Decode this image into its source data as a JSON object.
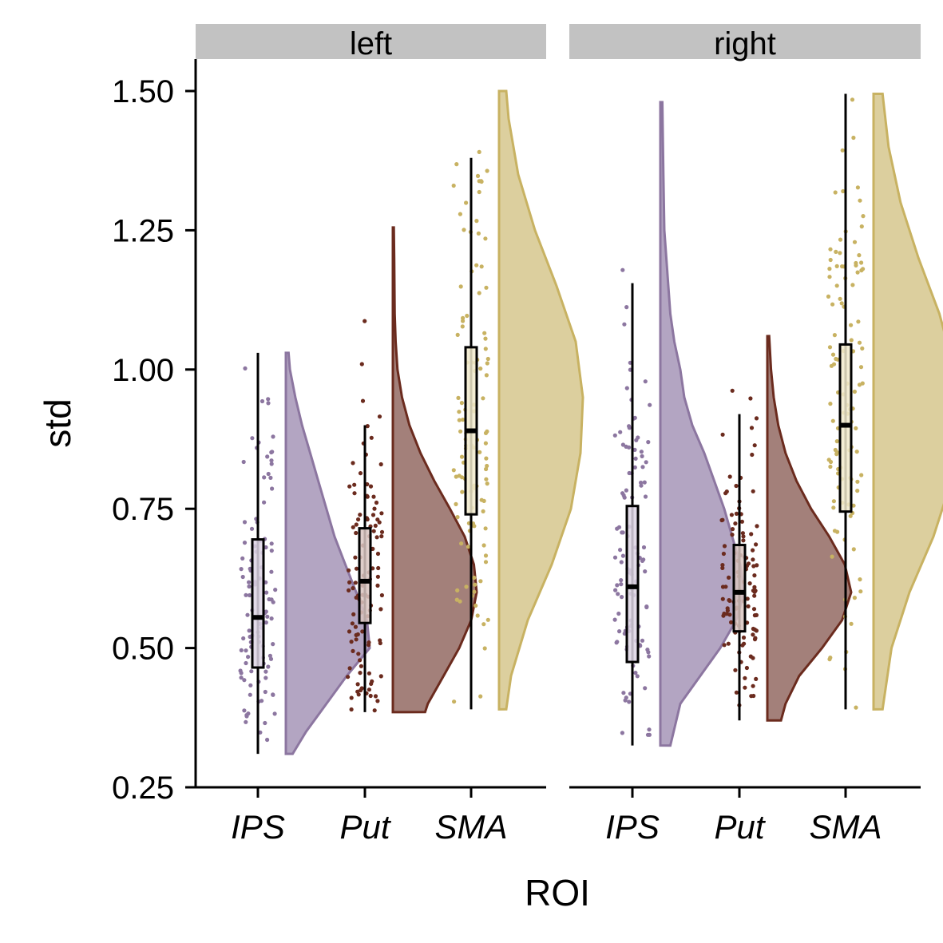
{
  "chart_data": {
    "type": "raincloud",
    "xlabel": "ROI",
    "ylabel": "std",
    "ylim": [
      0.25,
      1.55
    ],
    "yticks": [
      "0.25",
      "0.50",
      "0.75",
      "1.00",
      "1.25",
      "1.50"
    ],
    "categories": [
      "IPS",
      "Put",
      "SMA"
    ],
    "colors": {
      "IPS": "#8C76A0",
      "Put": "#6B2B1E",
      "SMA": "#C8B262"
    },
    "panels": [
      {
        "label": "left",
        "groups": [
          {
            "category": "IPS",
            "min": 0.31,
            "q1": 0.465,
            "median": 0.555,
            "q3": 0.695,
            "max": 1.03,
            "density": [
              [
                0.31,
                0.05
              ],
              [
                0.35,
                0.15
              ],
              [
                0.4,
                0.3
              ],
              [
                0.45,
                0.45
              ],
              [
                0.5,
                0.62
              ],
              [
                0.55,
                0.6
              ],
              [
                0.6,
                0.52
              ],
              [
                0.65,
                0.44
              ],
              [
                0.7,
                0.36
              ],
              [
                0.75,
                0.3
              ],
              [
                0.8,
                0.24
              ],
              [
                0.85,
                0.18
              ],
              [
                0.9,
                0.12
              ],
              [
                0.95,
                0.07
              ],
              [
                1.0,
                0.03
              ],
              [
                1.03,
                0.02
              ]
            ]
          },
          {
            "category": "Put",
            "min": 0.385,
            "q1": 0.545,
            "median": 0.62,
            "q3": 0.715,
            "max": 0.9,
            "density": [
              [
                0.385,
                0.35
              ],
              [
                0.4,
                0.38
              ],
              [
                0.45,
                0.55
              ],
              [
                0.5,
                0.72
              ],
              [
                0.55,
                0.85
              ],
              [
                0.6,
                0.91
              ],
              [
                0.65,
                0.88
              ],
              [
                0.7,
                0.78
              ],
              [
                0.75,
                0.62
              ],
              [
                0.8,
                0.45
              ],
              [
                0.85,
                0.3
              ],
              [
                0.9,
                0.18
              ],
              [
                0.95,
                0.1
              ],
              [
                1.0,
                0.05
              ],
              [
                1.05,
                0.03
              ],
              [
                1.1,
                0.02
              ],
              [
                1.2,
                0.015
              ],
              [
                1.255,
                0.01
              ]
            ]
          },
          {
            "category": "SMA",
            "min": 0.39,
            "q1": 0.74,
            "median": 0.89,
            "q3": 1.04,
            "max": 1.38,
            "density": [
              [
                0.39,
                0.03
              ],
              [
                0.45,
                0.05
              ],
              [
                0.55,
                0.12
              ],
              [
                0.65,
                0.22
              ],
              [
                0.75,
                0.3
              ],
              [
                0.85,
                0.34
              ],
              [
                0.95,
                0.35
              ],
              [
                1.05,
                0.32
              ],
              [
                1.15,
                0.24
              ],
              [
                1.25,
                0.15
              ],
              [
                1.35,
                0.08
              ],
              [
                1.45,
                0.04
              ],
              [
                1.5,
                0.03
              ]
            ]
          }
        ]
      },
      {
        "label": "right",
        "groups": [
          {
            "category": "IPS",
            "min": 0.325,
            "q1": 0.475,
            "median": 0.61,
            "q3": 0.755,
            "max": 1.155,
            "density": [
              [
                0.325,
                0.05
              ],
              [
                0.4,
                0.1
              ],
              [
                0.45,
                0.2
              ],
              [
                0.5,
                0.3
              ],
              [
                0.55,
                0.38
              ],
              [
                0.6,
                0.42
              ],
              [
                0.65,
                0.4
              ],
              [
                0.7,
                0.36
              ],
              [
                0.75,
                0.32
              ],
              [
                0.8,
                0.27
              ],
              [
                0.85,
                0.22
              ],
              [
                0.9,
                0.16
              ],
              [
                0.95,
                0.12
              ],
              [
                1.0,
                0.1
              ],
              [
                1.05,
                0.07
              ],
              [
                1.1,
                0.05
              ],
              [
                1.15,
                0.04
              ],
              [
                1.25,
                0.02
              ],
              [
                1.35,
                0.015
              ],
              [
                1.48,
                0.01
              ]
            ]
          },
          {
            "category": "Put",
            "min": 0.37,
            "q1": 0.53,
            "median": 0.6,
            "q3": 0.685,
            "max": 0.92,
            "density": [
              [
                0.37,
                0.15
              ],
              [
                0.4,
                0.2
              ],
              [
                0.45,
                0.35
              ],
              [
                0.5,
                0.6
              ],
              [
                0.55,
                0.82
              ],
              [
                0.6,
                0.92
              ],
              [
                0.65,
                0.85
              ],
              [
                0.7,
                0.68
              ],
              [
                0.75,
                0.48
              ],
              [
                0.8,
                0.32
              ],
              [
                0.85,
                0.2
              ],
              [
                0.9,
                0.12
              ],
              [
                0.95,
                0.07
              ],
              [
                1.0,
                0.04
              ],
              [
                1.06,
                0.02
              ]
            ]
          },
          {
            "category": "SMA",
            "min": 0.39,
            "q1": 0.745,
            "median": 0.9,
            "q3": 1.045,
            "max": 1.495,
            "density": [
              [
                0.39,
                0.03
              ],
              [
                0.5,
                0.06
              ],
              [
                0.6,
                0.12
              ],
              [
                0.7,
                0.2
              ],
              [
                0.8,
                0.26
              ],
              [
                0.9,
                0.28
              ],
              [
                1.0,
                0.27
              ],
              [
                1.1,
                0.22
              ],
              [
                1.2,
                0.15
              ],
              [
                1.3,
                0.09
              ],
              [
                1.4,
                0.05
              ],
              [
                1.495,
                0.03
              ]
            ]
          }
        ]
      }
    ]
  }
}
